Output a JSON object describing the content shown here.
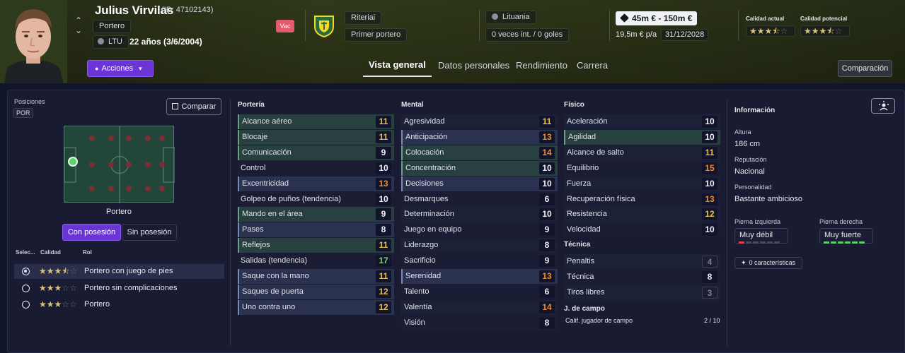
{
  "player": {
    "name": "Julius Virvilas",
    "id_text": "(ID: 47102143)",
    "position_chip": "Portero",
    "nation_code": "LTU",
    "age_text": "22 años (3/6/2004)",
    "status_badge": "Vac",
    "club": "Riteriai",
    "squad_role": "Primer portero",
    "nation": "Lituania",
    "caps": "0 veces int. / 0 goles",
    "value_range": "45m € - 150m €",
    "wage": "19,5m € p/a",
    "contract_end": "31/12/2028",
    "quality_current_label": "Calidad actual",
    "quality_current_stars": 3.5,
    "quality_potential_label": "Calidad potencial",
    "quality_potential_stars": 3.5
  },
  "header": {
    "actions_label": "Acciones",
    "comparison_label": "Comparación",
    "tabs": [
      {
        "label": "Vista general",
        "active": true
      },
      {
        "label": "Datos personales",
        "active": false
      },
      {
        "label": "Rendimiento",
        "active": false
      },
      {
        "label": "Carrera",
        "active": false
      }
    ]
  },
  "left": {
    "positions_label": "Posiciones",
    "position_code": "POR",
    "compare_label": "Comparar",
    "pitch_caption": "Portero",
    "toggle_on": "Con posesión",
    "toggle_off": "Sin posesión",
    "table_headers": {
      "select": "Selec...",
      "quality": "Calidad",
      "role": "Rol"
    },
    "roles": [
      {
        "label": "Portero con juego de pies",
        "stars": 3.5,
        "selected": true
      },
      {
        "label": "Portero sin complicaciones",
        "stars": 3,
        "selected": false
      },
      {
        "label": "Portero",
        "stars": 3,
        "selected": false
      }
    ]
  },
  "porteria": {
    "title": "Portería",
    "attributes": [
      {
        "label": "Alcance aéreo",
        "value": 11,
        "color": "yellow",
        "hl": "green"
      },
      {
        "label": "Blocaje",
        "value": 11,
        "color": "yellow",
        "hl": "green"
      },
      {
        "label": "Comunicación",
        "value": 9,
        "color": "white",
        "hl": "green"
      },
      {
        "label": "Control",
        "value": 10,
        "color": "white",
        "hl": ""
      },
      {
        "label": "Excentricidad",
        "value": 13,
        "color": "orange",
        "hl": "blue"
      },
      {
        "label": "Golpeo de puños (tendencia)",
        "value": 10,
        "color": "white",
        "hl": ""
      },
      {
        "label": "Mando en el área",
        "value": 9,
        "color": "white",
        "hl": "green"
      },
      {
        "label": "Pases",
        "value": 8,
        "color": "white",
        "hl": "blue"
      },
      {
        "label": "Reflejos",
        "value": 11,
        "color": "yellow",
        "hl": "green"
      },
      {
        "label": "Salidas (tendencia)",
        "value": 17,
        "color": "green",
        "hl": ""
      },
      {
        "label": "Saque con la mano",
        "value": 11,
        "color": "yellow",
        "hl": "blue"
      },
      {
        "label": "Saques de puerta",
        "value": 12,
        "color": "yellow",
        "hl": "blue"
      },
      {
        "label": "Uno contra uno",
        "value": 12,
        "color": "yellow",
        "hl": "blue"
      }
    ]
  },
  "mental": {
    "title": "Mental",
    "attributes": [
      {
        "label": "Agresividad",
        "value": 11,
        "color": "yellow",
        "hl": ""
      },
      {
        "label": "Anticipación",
        "value": 13,
        "color": "orange",
        "hl": "blue"
      },
      {
        "label": "Colocación",
        "value": 14,
        "color": "orange",
        "hl": "green"
      },
      {
        "label": "Concentración",
        "value": 10,
        "color": "white",
        "hl": "green"
      },
      {
        "label": "Decisiones",
        "value": 10,
        "color": "white",
        "hl": "blue"
      },
      {
        "label": "Desmarques",
        "value": 6,
        "color": "white",
        "hl": ""
      },
      {
        "label": "Determinación",
        "value": 10,
        "color": "white",
        "hl": ""
      },
      {
        "label": "Juego en equipo",
        "value": 9,
        "color": "white",
        "hl": ""
      },
      {
        "label": "Liderazgo",
        "value": 8,
        "color": "white",
        "hl": ""
      },
      {
        "label": "Sacrificio",
        "value": 9,
        "color": "white",
        "hl": ""
      },
      {
        "label": "Serenidad",
        "value": 13,
        "color": "orange",
        "hl": "blue"
      },
      {
        "label": "Talento",
        "value": 6,
        "color": "white",
        "hl": ""
      },
      {
        "label": "Valentía",
        "value": 14,
        "color": "orange",
        "hl": ""
      },
      {
        "label": "Visión",
        "value": 8,
        "color": "white",
        "hl": ""
      }
    ]
  },
  "fisico": {
    "title": "Físico",
    "attributes": [
      {
        "label": "Aceleración",
        "value": 10,
        "color": "white",
        "hl": ""
      },
      {
        "label": "Agilidad",
        "value": 10,
        "color": "white",
        "hl": "green"
      },
      {
        "label": "Alcance de salto",
        "value": 11,
        "color": "yellow",
        "hl": ""
      },
      {
        "label": "Equilibrio",
        "value": 15,
        "color": "orange",
        "hl": ""
      },
      {
        "label": "Fuerza",
        "value": 10,
        "color": "white",
        "hl": ""
      },
      {
        "label": "Recuperación física",
        "value": 13,
        "color": "orange",
        "hl": ""
      },
      {
        "label": "Resistencia",
        "value": 12,
        "color": "yellow",
        "hl": ""
      },
      {
        "label": "Velocidad",
        "value": 10,
        "color": "white",
        "hl": ""
      }
    ]
  },
  "tecnica": {
    "title": "Técnica",
    "attributes": [
      {
        "label": "Penaltis",
        "value": 4,
        "color": "muted",
        "hl": ""
      },
      {
        "label": "Técnica",
        "value": 8,
        "color": "white",
        "hl": ""
      },
      {
        "label": "Tiros libres",
        "value": 3,
        "color": "muted",
        "hl": ""
      }
    ]
  },
  "outfield": {
    "title": "J. de campo",
    "label": "Calif. jugador de campo",
    "value": "2 / 10"
  },
  "info": {
    "title": "Información",
    "height_label": "Altura",
    "height": "186 cm",
    "reputation_label": "Reputación",
    "reputation": "Nacional",
    "personality_label": "Personalidad",
    "personality": "Bastante ambicioso",
    "left_foot_label": "Pierna izquierda",
    "left_foot": "Muy débil",
    "left_foot_level": 1,
    "right_foot_label": "Pierna derecha",
    "right_foot": "Muy fuerte",
    "right_foot_level": 6,
    "traits_label": "0 características"
  }
}
